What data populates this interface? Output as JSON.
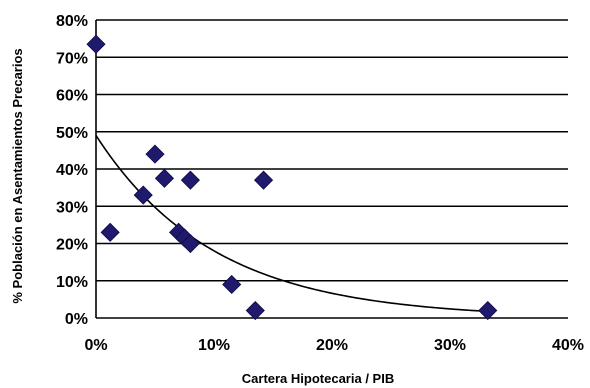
{
  "chart_data": {
    "type": "scatter",
    "title": "",
    "xlabel": "Cartera  Hipotecaria  / PIB",
    "ylabel": "% Población  en  Asentamientos  Precarios",
    "xlim": [
      0,
      40
    ],
    "ylim": [
      0,
      80
    ],
    "x_ticks": [
      "0%",
      "10%",
      "20%",
      "30%",
      "40%"
    ],
    "y_ticks": [
      "0%",
      "10%",
      "20%",
      "30%",
      "40%",
      "50%",
      "60%",
      "70%",
      "80%"
    ],
    "grid": "horizontal",
    "legend": "none",
    "marker": "diamond",
    "marker_color": "#1F1A6E",
    "trendline": {
      "type": "exponential",
      "a": 49,
      "b": -0.1,
      "color": "#000000"
    },
    "points": [
      {
        "x": 0,
        "y": 73.5
      },
      {
        "x": 1.2,
        "y": 23
      },
      {
        "x": 4,
        "y": 33
      },
      {
        "x": 5,
        "y": 44
      },
      {
        "x": 5.8,
        "y": 37.5
      },
      {
        "x": 7,
        "y": 23
      },
      {
        "x": 7.5,
        "y": 21.5
      },
      {
        "x": 8,
        "y": 20
      },
      {
        "x": 8,
        "y": 37
      },
      {
        "x": 11.5,
        "y": 9
      },
      {
        "x": 13.5,
        "y": 2
      },
      {
        "x": 14.2,
        "y": 37
      },
      {
        "x": 33.2,
        "y": 2
      }
    ]
  }
}
